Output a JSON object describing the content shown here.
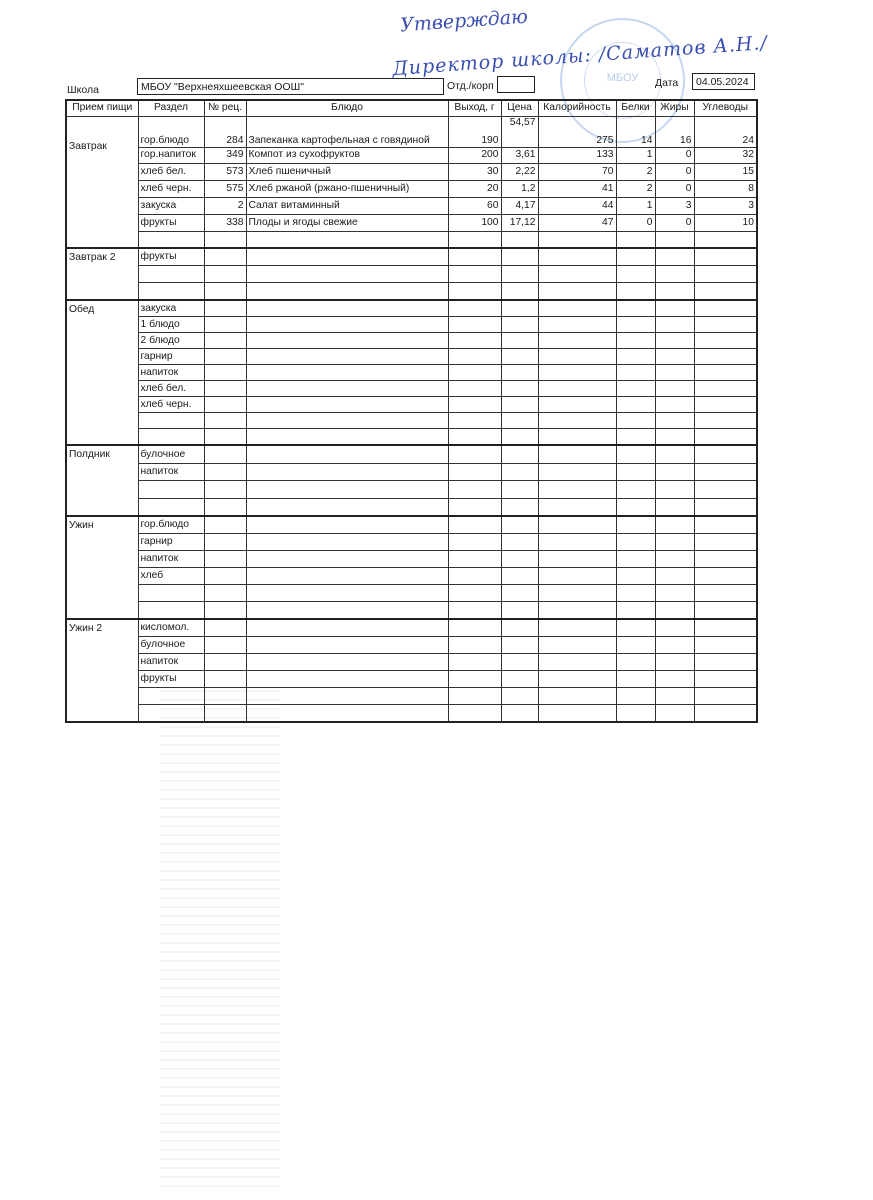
{
  "approval": {
    "line1": "Утверждаю",
    "line2": "Директор школы: /Саматов А.Н./",
    "stamp_text": "МБОУ"
  },
  "header": {
    "school_label": "Школа",
    "school_value": "МБОУ \"Верхнеяхшеевская ООШ\"",
    "dept_label": "Отд./корп",
    "dept_value": "",
    "date_label": "Дата",
    "date_value": "04.05.2024"
  },
  "columns": [
    "Прием пищи",
    "Раздел",
    "№ рец.",
    "Блюдо",
    "Выход, г",
    "Цена",
    "Калорийность",
    "Белки",
    "Жиры",
    "Углеводы"
  ],
  "meals": [
    {
      "name": "Завтрак",
      "rows": [
        {
          "section": "гор.блюдо",
          "recipe": "284",
          "dish": "Запеканка картофельная с говядиной",
          "yield": "190",
          "price": "54,57",
          "kcal": "275",
          "protein": "14",
          "fat": "16",
          "carbs": "24"
        },
        {
          "section": "гор.напиток",
          "recipe": "349",
          "dish": "Компот из сухофруктов",
          "yield": "200",
          "price": "3,61",
          "kcal": "133",
          "protein": "1",
          "fat": "0",
          "carbs": "32"
        },
        {
          "section": "хлеб бел.",
          "recipe": "573",
          "dish": "Хлеб пшеничный",
          "yield": "30",
          "price": "2,22",
          "kcal": "70",
          "protein": "2",
          "fat": "0",
          "carbs": "15"
        },
        {
          "section": "хлеб черн.",
          "recipe": "575",
          "dish": "Хлеб ржаной (ржано-пшеничный)",
          "yield": "20",
          "price": "1,2",
          "kcal": "41",
          "protein": "2",
          "fat": "0",
          "carbs": "8"
        },
        {
          "section": "закуска",
          "recipe": "2",
          "dish": "Салат витаминный",
          "yield": "60",
          "price": "4,17",
          "kcal": "44",
          "protein": "1",
          "fat": "3",
          "carbs": "3"
        },
        {
          "section": "фрукты",
          "recipe": "338",
          "dish": "Плоды и ягоды свежие",
          "yield": "100",
          "price": "17,12",
          "kcal": "47",
          "protein": "0",
          "fat": "0",
          "carbs": "10"
        },
        {}
      ]
    },
    {
      "name": "Завтрак 2",
      "rows": [
        {
          "section": "фрукты"
        },
        {},
        {}
      ]
    },
    {
      "name": "Обед",
      "rows": [
        {
          "section": "закуска"
        },
        {
          "section": "1 блюдо"
        },
        {
          "section": "2 блюдо"
        },
        {
          "section": "гарнир"
        },
        {
          "section": "напиток"
        },
        {
          "section": "хлеб бел."
        },
        {
          "section": "хлеб черн."
        },
        {},
        {}
      ]
    },
    {
      "name": "Полдник",
      "rows": [
        {
          "section": "булочное"
        },
        {
          "section": "напиток"
        },
        {},
        {}
      ]
    },
    {
      "name": "Ужин",
      "rows": [
        {
          "section": "гор.блюдо"
        },
        {
          "section": "гарнир"
        },
        {
          "section": "напиток"
        },
        {
          "section": "хлеб"
        },
        {},
        {}
      ]
    },
    {
      "name": "Ужин 2",
      "rows": [
        {
          "section": "кисломол."
        },
        {
          "section": "булочное"
        },
        {
          "section": "напиток"
        },
        {
          "section": "фрукты"
        },
        {},
        {}
      ]
    }
  ]
}
